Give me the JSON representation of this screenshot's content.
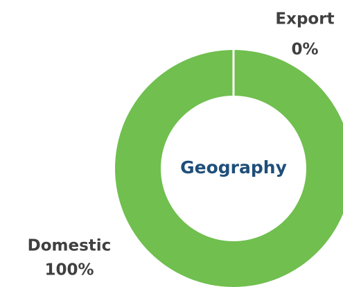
{
  "chart_data": {
    "type": "donut",
    "center_label": "Geography",
    "categories": [
      "Domestic",
      "Export"
    ],
    "values": [
      100,
      0
    ],
    "value_labels": [
      "100%",
      "0%"
    ],
    "colors": [
      "#70bf4f",
      "#70bf4f"
    ]
  }
}
